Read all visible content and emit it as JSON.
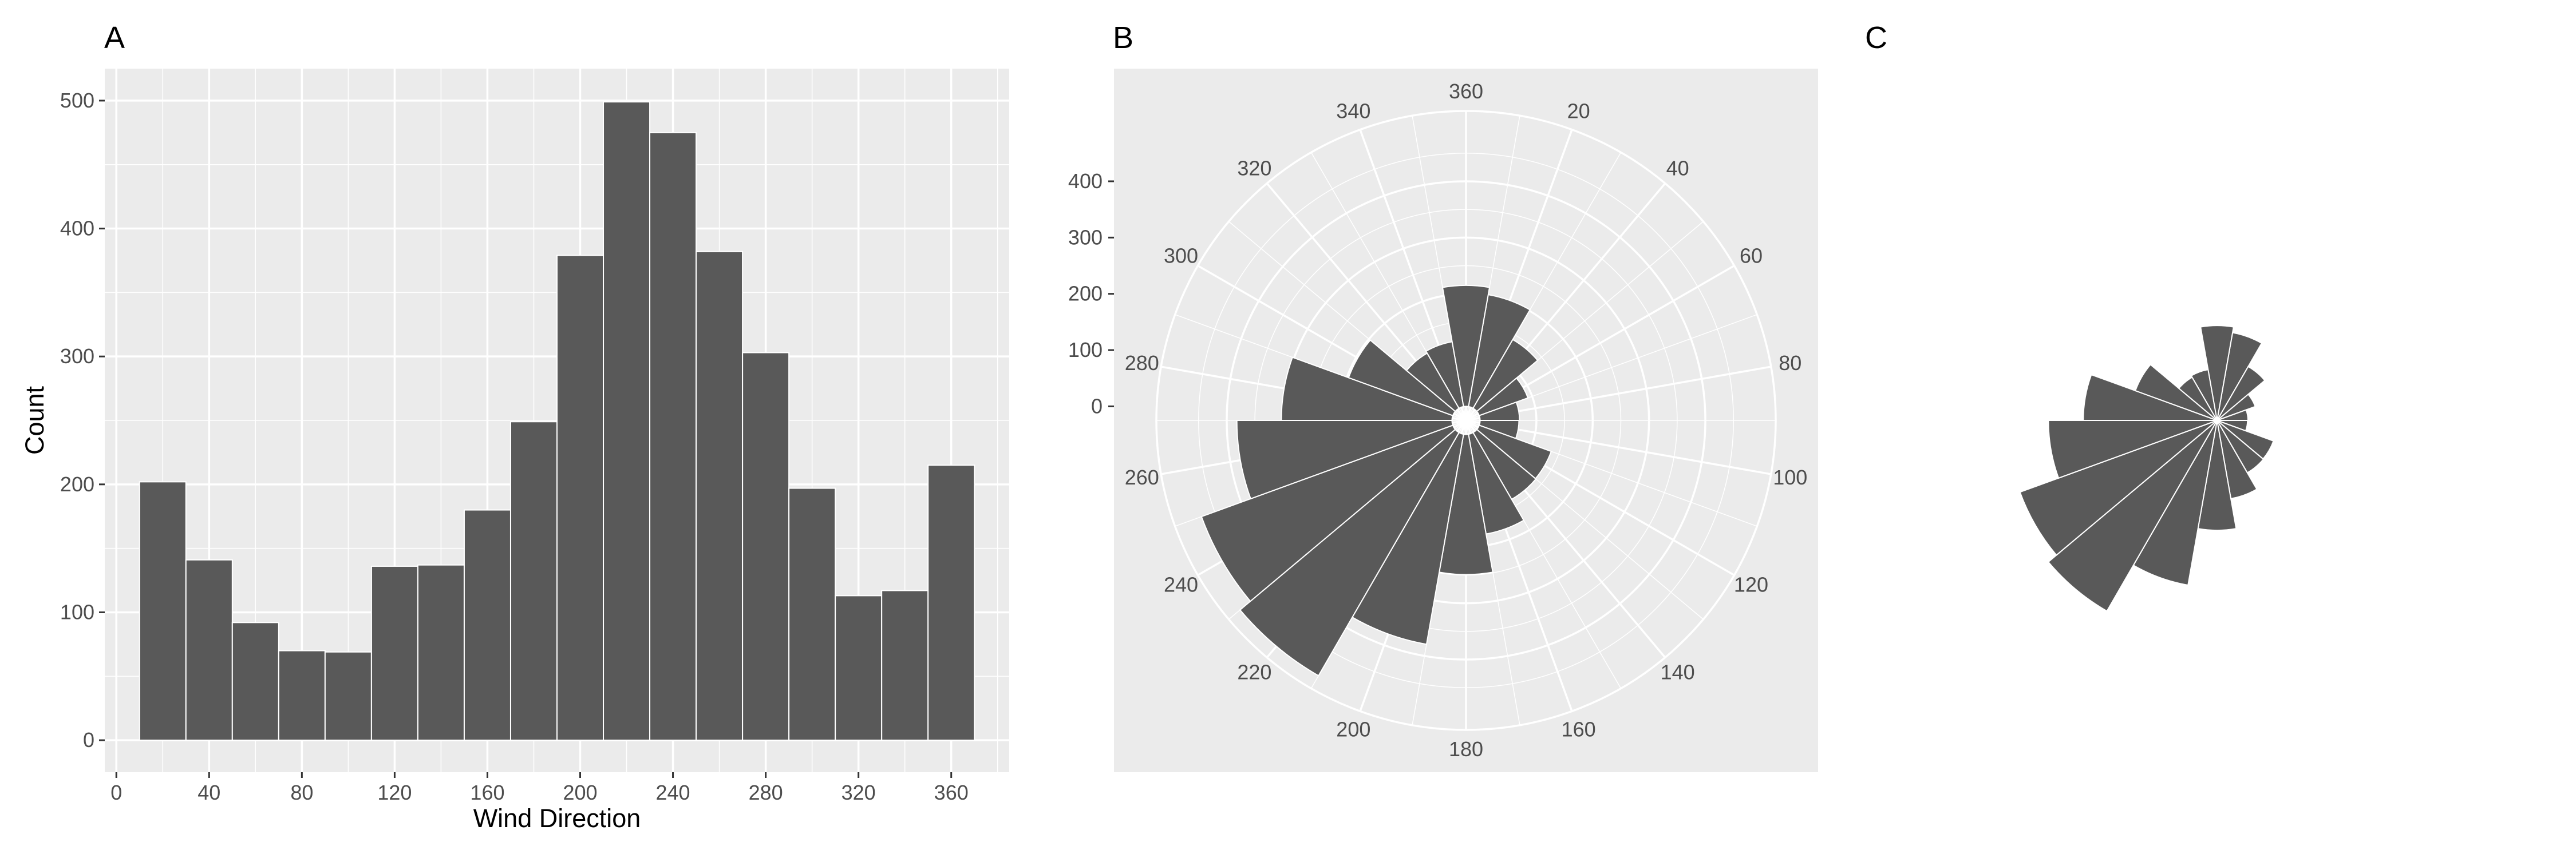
{
  "panels": {
    "a": "A",
    "b": "B",
    "c": "C"
  },
  "chart_data": [
    {
      "panel": "A",
      "type": "bar",
      "xlabel": "Wind Direction",
      "ylabel": "Count",
      "x": [
        20,
        40,
        60,
        80,
        100,
        120,
        140,
        160,
        180,
        200,
        220,
        240,
        260,
        280,
        300,
        320,
        340,
        360
      ],
      "values": [
        202,
        141,
        92,
        70,
        69,
        136,
        137,
        180,
        249,
        379,
        499,
        475,
        382,
        303,
        197,
        113,
        117,
        215
      ],
      "bin_width": 20,
      "xlim": [
        -5,
        385
      ],
      "ylim": [
        -25,
        525
      ],
      "xticks": [
        "0",
        "40",
        "80",
        "120",
        "160",
        "200",
        "240",
        "280",
        "320",
        "360"
      ],
      "yticks": [
        "0",
        "100",
        "200",
        "300",
        "400",
        "500"
      ],
      "grid": true
    },
    {
      "panel": "B",
      "type": "bar",
      "projection": "polar",
      "x": [
        20,
        40,
        60,
        80,
        100,
        120,
        140,
        160,
        180,
        200,
        220,
        240,
        260,
        280,
        300,
        320,
        340,
        360
      ],
      "values": [
        202,
        141,
        92,
        70,
        69,
        136,
        137,
        180,
        249,
        379,
        499,
        475,
        382,
        303,
        197,
        113,
        117,
        215
      ],
      "bin_width": 20,
      "theta_ticks": [
        "20",
        "40",
        "60",
        "80",
        "100",
        "120",
        "140",
        "160",
        "180",
        "200",
        "220",
        "240",
        "260",
        "280",
        "300",
        "320",
        "340",
        "360"
      ],
      "r_ticks": [
        "0",
        "100",
        "200",
        "300",
        "400"
      ],
      "rlim": [
        -25,
        525
      ],
      "grid": true
    },
    {
      "panel": "C",
      "type": "bar",
      "projection": "polar",
      "x": [
        20,
        40,
        60,
        80,
        100,
        120,
        140,
        160,
        180,
        200,
        220,
        240,
        260,
        280,
        300,
        320,
        340,
        360
      ],
      "values": [
        202,
        141,
        92,
        70,
        69,
        136,
        137,
        180,
        249,
        379,
        499,
        475,
        382,
        303,
        197,
        113,
        117,
        215
      ],
      "bin_width": 20,
      "grid": false
    }
  ]
}
